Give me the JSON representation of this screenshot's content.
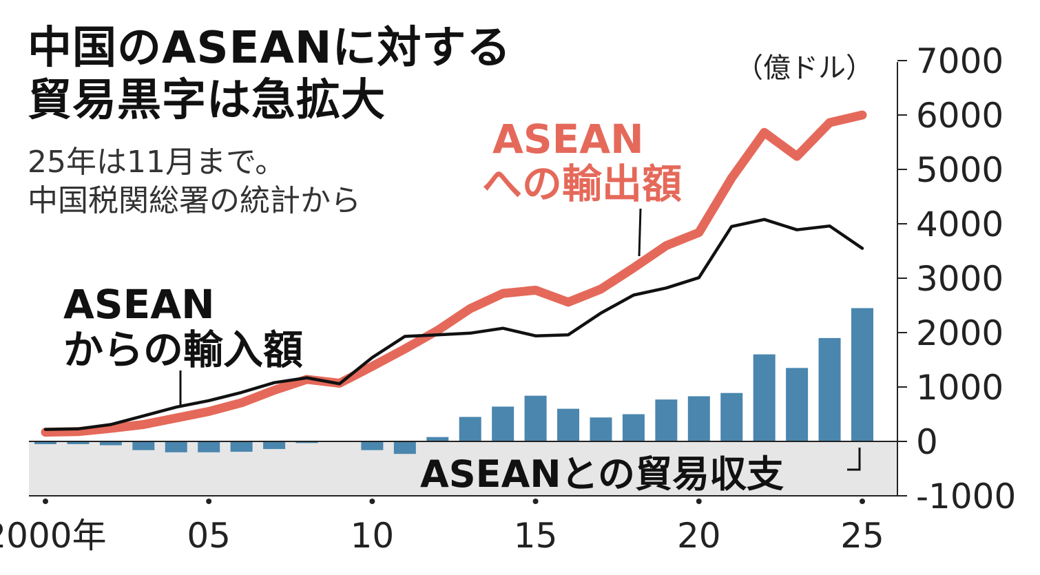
{
  "title": [
    "中国のASEANに対する",
    "貿易黒字は急拡大"
  ],
  "subtitle": [
    "25年は11月まで。",
    "中国税関総署の統計から"
  ],
  "chart_data": {
    "type": "line+bar",
    "unit_label": "（億ドル）",
    "x": [
      2000,
      2001,
      2002,
      2003,
      2004,
      2005,
      2006,
      2007,
      2008,
      2009,
      2010,
      2011,
      2012,
      2013,
      2014,
      2015,
      2016,
      2017,
      2018,
      2019,
      2020,
      2021,
      2022,
      2023,
      2024,
      2025
    ],
    "x_ticks": [
      {
        "value": 2000,
        "label": "2000年"
      },
      {
        "value": 2005,
        "label": "05"
      },
      {
        "value": 2010,
        "label": "10"
      },
      {
        "value": 2015,
        "label": "15"
      },
      {
        "value": 2020,
        "label": "20"
      },
      {
        "value": 2025,
        "label": "25"
      }
    ],
    "y_ticks": [
      7000,
      6000,
      5000,
      4000,
      3000,
      2000,
      1000,
      0,
      -1000
    ],
    "ylim": [
      -1000,
      7000
    ],
    "series": [
      {
        "name": "ASEANへの輸出額",
        "label_lines": [
          "ASEAN",
          "への輸出額"
        ],
        "kind": "line",
        "color": "#e5695a",
        "values": [
          170,
          180,
          240,
          310,
          430,
          550,
          710,
          940,
          1140,
          1070,
          1380,
          1700,
          2040,
          2440,
          2720,
          2780,
          2560,
          2800,
          3190,
          3600,
          3840,
          4840,
          5680,
          5240,
          5860,
          6000
        ]
      },
      {
        "name": "ASEANからの輸入額",
        "label_lines": [
          "ASEAN",
          "からの輸入額"
        ],
        "kind": "line",
        "color": "#111111",
        "values": [
          220,
          230,
          310,
          470,
          630,
          750,
          900,
          1080,
          1170,
          1060,
          1540,
          1930,
          1960,
          1990,
          2080,
          1940,
          1960,
          2360,
          2690,
          2820,
          3010,
          3950,
          4080,
          3890,
          3960,
          3550
        ]
      },
      {
        "name": "ASEANとの貿易収支",
        "label_lines": [
          "ASEANとの貿易収支"
        ],
        "kind": "bar",
        "color": "#4a86ae",
        "values": [
          -50,
          -50,
          -70,
          -160,
          -200,
          -200,
          -190,
          -140,
          -30,
          -10,
          -160,
          -230,
          80,
          450,
          640,
          840,
          600,
          440,
          500,
          770,
          830,
          890,
          1600,
          1350,
          1900,
          2450
        ]
      }
    ],
    "negative_region_color": "#e6e6e6"
  }
}
